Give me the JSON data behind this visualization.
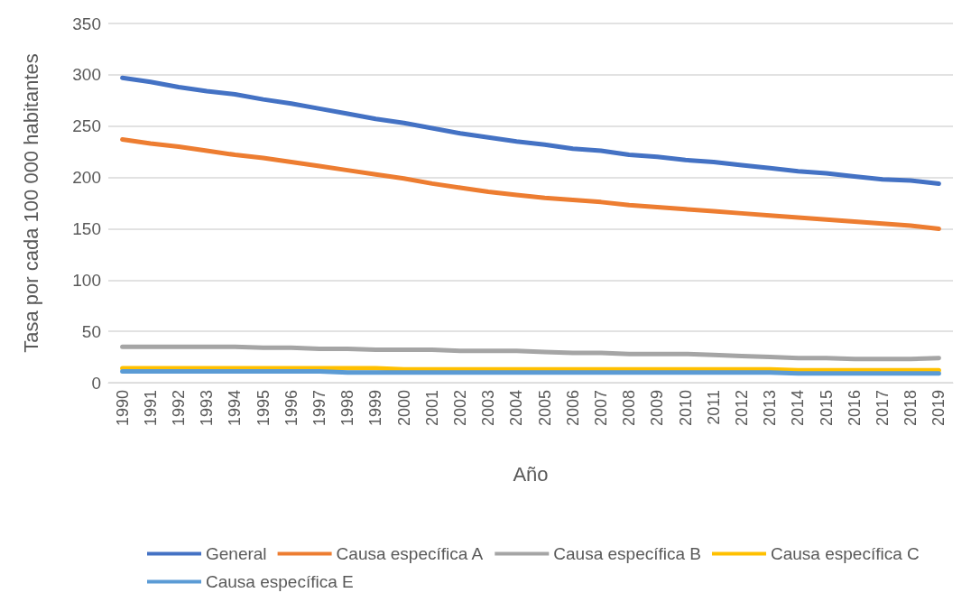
{
  "chart_data": {
    "type": "line",
    "xlabel": "Año",
    "ylabel": "Tasa por cada 100 000 habitantes",
    "categories": [
      "1990",
      "1991",
      "1992",
      "1993",
      "1994",
      "1995",
      "1996",
      "1997",
      "1998",
      "1999",
      "2000",
      "2001",
      "2002",
      "2003",
      "2004",
      "2005",
      "2006",
      "2007",
      "2008",
      "2009",
      "2010",
      "2011",
      "2012",
      "2013",
      "2014",
      "2015",
      "2016",
      "2017",
      "2018",
      "2019"
    ],
    "series": [
      {
        "name": "General",
        "color": "#4472c4",
        "values": [
          297,
          293,
          288,
          284,
          281,
          276,
          272,
          267,
          262,
          257,
          253,
          248,
          243,
          239,
          235,
          232,
          228,
          226,
          222,
          220,
          217,
          215,
          212,
          209,
          206,
          204,
          201,
          198,
          197,
          194
        ]
      },
      {
        "name": "Causa específica A",
        "color": "#ed7d31",
        "values": [
          237,
          233,
          230,
          226,
          222,
          219,
          215,
          211,
          207,
          203,
          199,
          194,
          190,
          186,
          183,
          180,
          178,
          176,
          173,
          171,
          169,
          167,
          165,
          163,
          161,
          159,
          157,
          155,
          153,
          150
        ]
      },
      {
        "name": "Causa específica B",
        "color": "#a5a5a5",
        "values": [
          35,
          35,
          35,
          35,
          35,
          34,
          34,
          33,
          33,
          32,
          32,
          32,
          31,
          31,
          31,
          30,
          29,
          29,
          28,
          28,
          28,
          27,
          26,
          25,
          24,
          24,
          23,
          23,
          23,
          24
        ]
      },
      {
        "name": "Causa específica C",
        "color": "#ffc000",
        "values": [
          14,
          14,
          14,
          14,
          14,
          14,
          14,
          14,
          14,
          14,
          13,
          13,
          13,
          13,
          13,
          13,
          13,
          13,
          13,
          13,
          13,
          13,
          13,
          13,
          12,
          12,
          12,
          12,
          12,
          12
        ]
      },
      {
        "name": "Causa específica E",
        "color": "#5b9bd5",
        "values": [
          11,
          11,
          11,
          11,
          11,
          11,
          11,
          11,
          10,
          10,
          10,
          10,
          10,
          10,
          10,
          10,
          10,
          10,
          10,
          10,
          10,
          10,
          10,
          10,
          9,
          9,
          9,
          9,
          9,
          9
        ]
      }
    ],
    "ylim": [
      0,
      350
    ],
    "yticks": [
      0,
      50,
      100,
      150,
      200,
      250,
      300,
      350
    ],
    "grid": "y",
    "legend": "bottom",
    "marker": "none",
    "line_style": "solid"
  }
}
